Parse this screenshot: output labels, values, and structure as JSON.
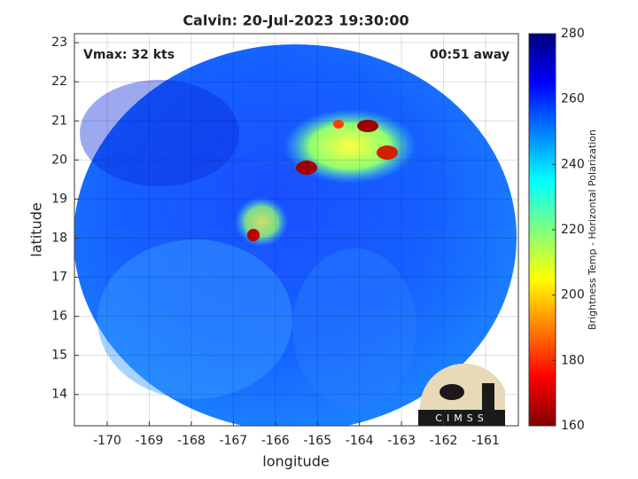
{
  "chart_data": {
    "type": "image-map",
    "title": "Calvin: 20-Jul-2023 19:30:00",
    "xlabel": "longitude",
    "ylabel": "latitude",
    "xlim": [
      -170.78,
      -160.22
    ],
    "ylim": [
      13.2,
      23.23
    ],
    "xticks": [
      -170,
      -169,
      -168,
      -167,
      -166,
      -165,
      -164,
      -163,
      -162,
      -161
    ],
    "yticks": [
      14,
      15,
      16,
      17,
      18,
      19,
      20,
      21,
      22,
      23
    ],
    "grid": true,
    "annotations": [
      "Vmax: 32 kts",
      "00:51 away"
    ],
    "colorbar": {
      "label": "Brightness Temp - Horizontal Polarization",
      "lim": [
        160,
        280
      ],
      "ticks": [
        160,
        180,
        200,
        220,
        240,
        260,
        280
      ],
      "colormap": [
        "#7f0000",
        "#ff0000",
        "#ff8000",
        "#ffff00",
        "#80ff80",
        "#00ffff",
        "#0080ff",
        "#0000ff",
        "#00007f"
      ]
    },
    "logo": "CIMSS"
  }
}
